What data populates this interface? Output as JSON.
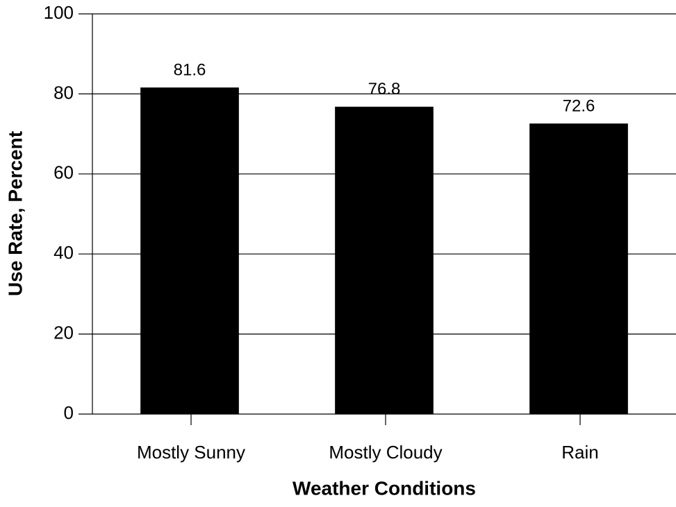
{
  "chart_data": {
    "type": "bar",
    "x_label": "Weather Conditions",
    "y_label": "Use Rate, Percent",
    "categories": [
      "Mostly Sunny",
      "Mostly Cloudy",
      "Rain"
    ],
    "values": [
      81.6,
      76.8,
      72.6
    ],
    "color": "#000000",
    "ylim": [
      0,
      100
    ],
    "yticks": [
      0,
      20,
      40,
      60,
      80,
      100
    ],
    "grid": true
  }
}
